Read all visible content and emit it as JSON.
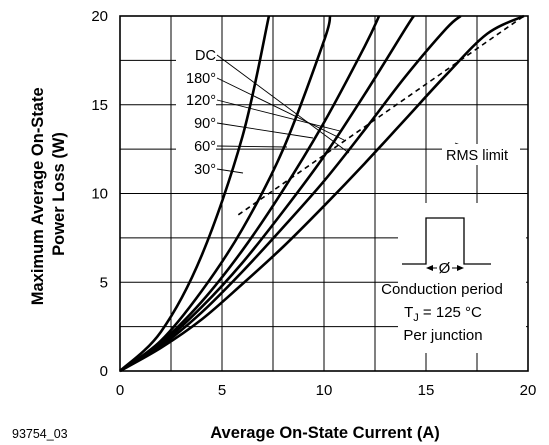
{
  "figure_id": "93754_03",
  "chart_data": {
    "type": "line",
    "xlabel": "Average On-State Current (A)",
    "ylabel": "Maximum Average On-State Power Loss (W)",
    "xlim": [
      0,
      20
    ],
    "ylim": [
      0,
      20
    ],
    "x_ticks": [
      0,
      5,
      10,
      15,
      20
    ],
    "y_ticks": [
      0,
      5,
      10,
      15,
      20
    ],
    "grid": true,
    "series": [
      {
        "name": "DC",
        "x": [
          0,
          2,
          4,
          6,
          8,
          10,
          12,
          14,
          16,
          18,
          19.8
        ],
        "y": [
          0,
          1.3,
          2.9,
          4.9,
          7.0,
          9.3,
          11.7,
          14.2,
          16.7,
          19.0,
          20.0
        ]
      },
      {
        "name": "180°",
        "x": [
          0,
          2,
          4,
          6,
          8,
          10,
          12,
          14,
          16,
          16.7
        ],
        "y": [
          0,
          1.4,
          3.3,
          5.6,
          8.1,
          10.7,
          13.6,
          16.6,
          19.3,
          20.0
        ]
      },
      {
        "name": "120°",
        "x": [
          0,
          2,
          4,
          6,
          8,
          10,
          12,
          14,
          14.4
        ],
        "y": [
          0,
          1.5,
          3.6,
          6.1,
          9.0,
          12.1,
          15.6,
          19.3,
          20.0
        ]
      },
      {
        "name": "90°",
        "x": [
          0,
          2,
          4,
          6,
          8,
          10,
          12,
          12.7
        ],
        "y": [
          0,
          1.6,
          3.9,
          6.8,
          10.2,
          14.0,
          18.3,
          20.0
        ]
      },
      {
        "name": "60°",
        "x": [
          0,
          2,
          4,
          6,
          8,
          10,
          10.3
        ],
        "y": [
          0,
          1.7,
          4.5,
          8.0,
          12.5,
          18.6,
          20.0
        ]
      },
      {
        "name": "30°",
        "x": [
          0,
          2,
          4,
          6,
          7.3
        ],
        "y": [
          0,
          2.2,
          6.5,
          13.2,
          20.0
        ]
      }
    ],
    "rms_limit": {
      "name": "RMS limit",
      "x": [
        5.8,
        19.8
      ],
      "y": [
        8.8,
        20.0
      ]
    },
    "annotations": {
      "conduction_period": "Conduction period",
      "conduction_symbol": "Ø",
      "tj_prefix": "T",
      "tj_subscript": "J",
      "tj_value": " = 125 °C",
      "per_junction": "Per junction"
    }
  }
}
